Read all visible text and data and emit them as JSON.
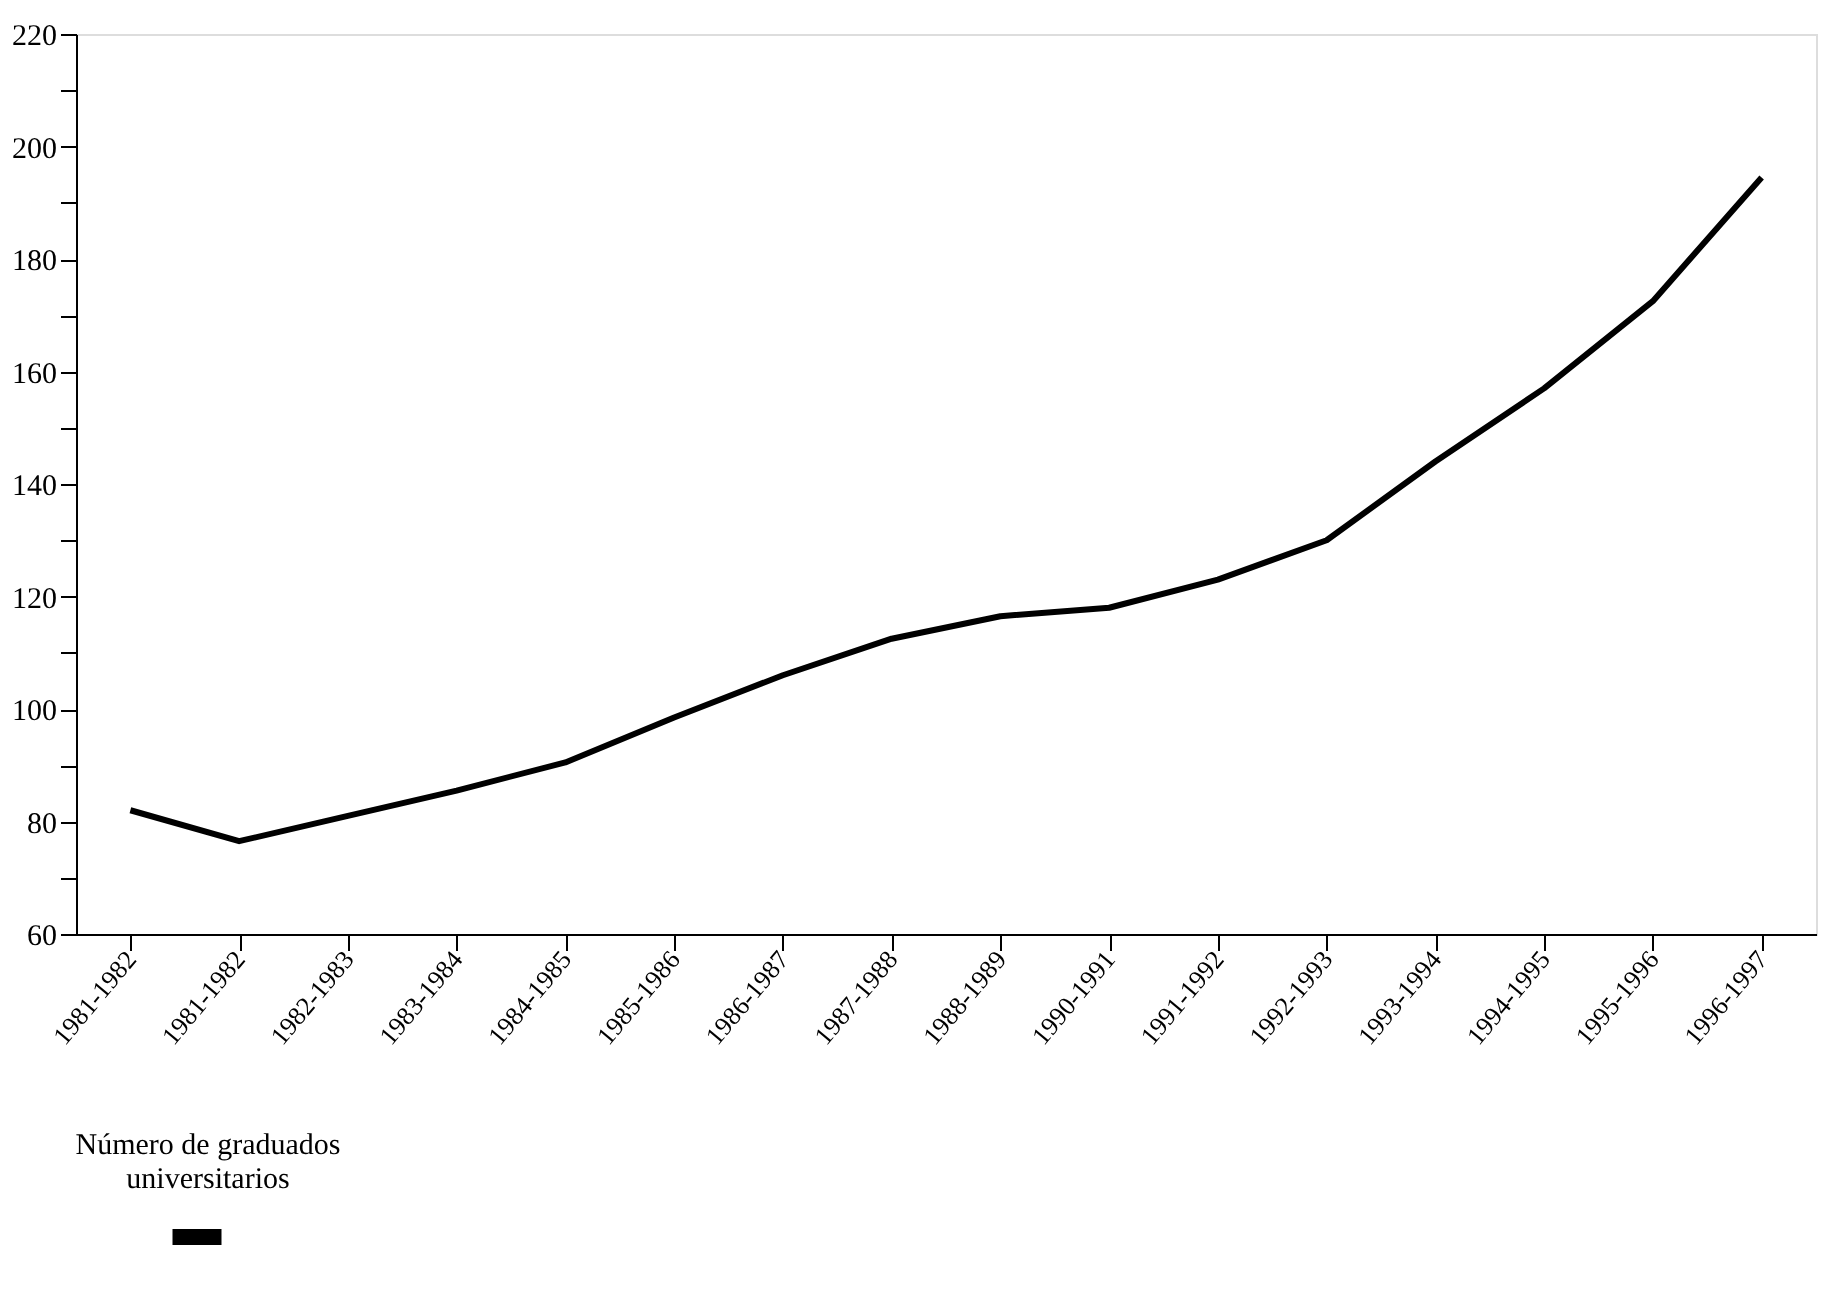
{
  "chart_data": {
    "type": "line",
    "categories": [
      "1981-1982",
      "1981-1982",
      "1982-1983",
      "1983-1984",
      "1984-1985",
      "1985-1986",
      "1986-1987",
      "1987-1988",
      "1988-1989",
      "1990-1991",
      "1991-1992",
      "1992-1993",
      "1993-1994",
      "1994-1995",
      "1995-1996",
      "1996-1997"
    ],
    "series": [
      {
        "name": "Número de graduados universitarios",
        "color": "#000000",
        "values": [
          82,
          76.5,
          81,
          85.5,
          90.5,
          98.5,
          106,
          112.5,
          116.5,
          118,
          123,
          130,
          144,
          157,
          172.5,
          194.5
        ]
      }
    ],
    "ylim": [
      60,
      220
    ],
    "yticks": [
      60,
      {
        "value": 70,
        "label": null
      },
      80,
      {
        "value": 90,
        "label": null
      },
      100,
      {
        "value": 110,
        "label": null
      },
      120,
      {
        "value": 130,
        "label": null
      },
      140,
      {
        "value": 150,
        "label": null
      },
      160,
      {
        "value": 170,
        "label": null
      },
      180,
      {
        "value": 190,
        "label": null
      },
      200,
      {
        "value": 210,
        "label": null
      },
      220
    ],
    "grid": false,
    "legend": "bottom",
    "marker": "none",
    "line_style": "solid"
  }
}
